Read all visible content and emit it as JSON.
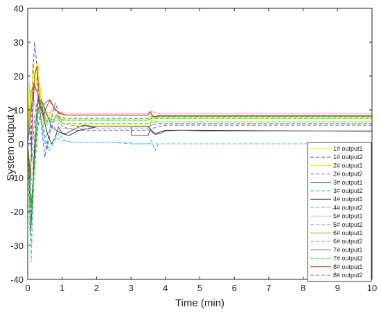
{
  "chart_data": {
    "type": "line",
    "xlabel": "Time (min)",
    "ylabel": "System output y",
    "xlim": [
      0,
      10
    ],
    "ylim": [
      -40,
      40
    ],
    "xticks": [
      0,
      1,
      2,
      3,
      4,
      5,
      6,
      7,
      8,
      9,
      10
    ],
    "yticks": [
      -40,
      -30,
      -20,
      -10,
      0,
      10,
      20,
      30,
      40
    ],
    "grid": false,
    "legend_position": "bottom-right",
    "series": [
      {
        "name": "1# output1",
        "color": "#e8e800",
        "dash": "solid",
        "x": [
          0,
          0.05,
          0.1,
          0.15,
          0.22,
          0.3,
          0.4,
          0.5,
          0.6,
          0.75,
          0.9,
          1.1,
          1.5,
          2,
          3,
          3.5,
          3.6,
          3.8,
          4,
          5,
          10
        ],
        "y": [
          0,
          18,
          8,
          24,
          15,
          24,
          10,
          6,
          8,
          11,
          9,
          7,
          7,
          7,
          7,
          7,
          8.5,
          7.5,
          7.5,
          7.5,
          7.5
        ]
      },
      {
        "name": "1# output2",
        "color": "#3355cc",
        "dash": "dashed",
        "x": [
          0,
          0.05,
          0.1,
          0.15,
          0.2,
          0.25,
          0.3,
          0.4,
          0.5,
          0.6,
          0.7,
          0.8,
          1,
          1.5,
          2,
          3,
          3.5,
          3.6,
          3.8,
          4,
          10
        ],
        "y": [
          0,
          10,
          0,
          20,
          30,
          25,
          15,
          5,
          -4,
          2,
          8,
          12,
          6,
          5,
          5,
          5,
          5,
          5.5,
          6,
          6,
          6
        ]
      },
      {
        "name": "2# output1",
        "color": "#e8e800",
        "dash": "solid",
        "x": [
          0,
          0.08,
          0.15,
          0.25,
          0.35,
          0.45,
          0.55,
          0.7,
          0.85,
          1,
          1.3,
          2,
          3,
          3.5,
          3.6,
          3.8,
          4,
          10
        ],
        "y": [
          0,
          12,
          20,
          22,
          18,
          9,
          6,
          9,
          8,
          6,
          5.5,
          5.5,
          5.5,
          5.5,
          7,
          6.5,
          6.5,
          6.5
        ]
      },
      {
        "name": "2# output2",
        "color": "#6666cc",
        "dash": "dashed",
        "x": [
          0,
          0.05,
          0.12,
          0.2,
          0.3,
          0.4,
          0.55,
          0.7,
          0.85,
          1,
          1.4,
          2,
          3,
          3.5,
          3.6,
          3.8,
          4,
          10
        ],
        "y": [
          0,
          5,
          -5,
          8,
          14,
          6,
          -2,
          5,
          9,
          5,
          4,
          4,
          4,
          4,
          4.5,
          5,
          5.5,
          5.5
        ]
      },
      {
        "name": "3# output1",
        "color": "#333333",
        "dash": "solid",
        "x": [
          0,
          0.04,
          0.08,
          0.12,
          0.18,
          0.25,
          0.32,
          0.4,
          0.5,
          0.6,
          0.7,
          0.8,
          0.9,
          1,
          1.2,
          1.5,
          2,
          3,
          3.5,
          3.7,
          4,
          5,
          10
        ],
        "y": [
          0,
          -10,
          -26,
          -20,
          -5,
          8,
          14,
          12,
          6,
          2,
          0,
          2,
          5,
          3,
          2.5,
          4,
          5,
          5,
          5,
          3,
          4,
          4,
          3.7
        ]
      },
      {
        "name": "3# output2",
        "color": "#33bbee",
        "dash": "dashed",
        "x": [
          0,
          0.05,
          0.1,
          0.18,
          0.28,
          0.4,
          0.5,
          0.62,
          0.75,
          0.9,
          1.05,
          1.3,
          1.8,
          2.4,
          3,
          3.5,
          3.6,
          3.7,
          3.8,
          4,
          10
        ],
        "y": [
          0,
          -15,
          -30,
          -10,
          10,
          12,
          2,
          -2,
          0,
          3,
          1,
          0.5,
          0.5,
          0.5,
          0,
          0,
          1,
          -2,
          0,
          0,
          0
        ]
      },
      {
        "name": "4# output1",
        "color": "#555555",
        "dash": "solid",
        "x": [
          0,
          0.05,
          0.1,
          0.2,
          0.3,
          0.4,
          0.55,
          0.7,
          0.9,
          1.1,
          1.3,
          1.6,
          2,
          2.5,
          3,
          3.02,
          3.5,
          3.55,
          3.7,
          3.85,
          4,
          4.5,
          5,
          10
        ],
        "y": [
          0,
          -8,
          -18,
          -5,
          10,
          13,
          9,
          5,
          3.5,
          3,
          4,
          5.5,
          5,
          5,
          5,
          2.5,
          2.5,
          4,
          2.8,
          3,
          3.8,
          4,
          3.8,
          3.8
        ]
      },
      {
        "name": "4# output2",
        "color": "#55bbee",
        "dash": "dashed",
        "x": [
          0,
          0.05,
          0.1,
          0.2,
          0.3,
          0.4,
          0.5,
          0.6,
          0.8,
          1,
          1.3,
          2,
          3,
          3.02,
          3.5,
          3.6,
          4,
          10
        ],
        "y": [
          0,
          -10,
          -20,
          -5,
          6,
          8,
          0,
          -1,
          2,
          1,
          0.5,
          0.5,
          0.5,
          0,
          0,
          0,
          0,
          0
        ]
      },
      {
        "name": "5# output1",
        "color": "#ff99aa",
        "dash": "solid",
        "x": [
          0,
          0.05,
          0.12,
          0.2,
          0.3,
          0.45,
          0.6,
          0.75,
          0.9,
          1.1,
          1.5,
          2,
          3,
          3.5,
          3.6,
          3.8,
          4,
          10
        ],
        "y": [
          0,
          6,
          12,
          17,
          15,
          10,
          9,
          10,
          9.5,
          9,
          9,
          9,
          9,
          9,
          9.5,
          9,
          9,
          9
        ]
      },
      {
        "name": "5# output2",
        "color": "#aaaaaa",
        "dash": "dashed",
        "x": [
          0,
          0.05,
          0.1,
          0.2,
          0.3,
          0.4,
          0.5,
          0.65,
          0.8,
          1,
          1.5,
          2,
          3,
          3.5,
          3.6,
          3.8,
          4,
          10
        ],
        "y": [
          0,
          -5,
          -12,
          2,
          10,
          6,
          2,
          4,
          5,
          4.5,
          4.5,
          4.5,
          4.5,
          4.5,
          6.5,
          6,
          6,
          6
        ]
      },
      {
        "name": "6# output1",
        "color": "#99cc33",
        "dash": "solid",
        "x": [
          0,
          0.05,
          0.1,
          0.2,
          0.3,
          0.45,
          0.6,
          0.75,
          0.9,
          1.1,
          1.5,
          2,
          3,
          3.5,
          3.6,
          3.8,
          4,
          10
        ],
        "y": [
          0,
          10,
          16,
          12,
          8,
          6,
          7,
          8,
          7.5,
          7,
          7,
          7,
          7,
          7,
          7.5,
          8,
          8,
          8
        ]
      },
      {
        "name": "6# output2",
        "color": "#66cc66",
        "dash": "dashed",
        "x": [
          0,
          0.04,
          0.1,
          0.18,
          0.28,
          0.4,
          0.55,
          0.7,
          0.9,
          1.1,
          1.5,
          2,
          3,
          3.5,
          3.6,
          3.8,
          4,
          10
        ],
        "y": [
          0,
          -20,
          -35,
          -10,
          8,
          12,
          6,
          4,
          6,
          6,
          6,
          6,
          6,
          6,
          6.5,
          6.5,
          6.5,
          6.5
        ]
      },
      {
        "name": "7# output1",
        "color": "#aa5555",
        "dash": "solid",
        "x": [
          0,
          0.05,
          0.1,
          0.18,
          0.28,
          0.38,
          0.5,
          0.62,
          0.75,
          0.9,
          1.1,
          1.5,
          2,
          3,
          3.5,
          3.55,
          3.65,
          3.8,
          4,
          10
        ],
        "y": [
          0,
          4,
          10,
          18,
          15,
          10,
          12,
          13,
          11,
          9,
          8.5,
          8.5,
          8.5,
          8.5,
          8.5,
          9.5,
          8,
          8.2,
          8.2,
          8.2
        ]
      },
      {
        "name": "7# output2",
        "color": "#33cc33",
        "dash": "dashed",
        "x": [
          0,
          0.05,
          0.1,
          0.2,
          0.3,
          0.4,
          0.5,
          0.6,
          0.8,
          1,
          1.5,
          2,
          3,
          3.5,
          3.6,
          4,
          10
        ],
        "y": [
          0,
          -10,
          -25,
          -8,
          5,
          10,
          8,
          6,
          7,
          7,
          7,
          7,
          7,
          7,
          7.5,
          7.5,
          7.5
        ]
      },
      {
        "name": "8# output1",
        "color": "#bb3322",
        "dash": "solid",
        "x": [
          0,
          0.04,
          0.08,
          0.13,
          0.2,
          0.27,
          0.35,
          0.45,
          0.55,
          0.65,
          0.8,
          0.95,
          1.1,
          1.5,
          2,
          3,
          3.5,
          3.55,
          3.65,
          3.8,
          4,
          10
        ],
        "y": [
          0,
          -5,
          -10,
          5,
          20,
          23,
          12,
          8,
          11,
          13,
          10,
          9,
          8.5,
          8.5,
          8.5,
          8.5,
          8.5,
          9.5,
          8,
          8.3,
          8.3,
          8.3
        ]
      },
      {
        "name": "8# output2",
        "color": "#22bb22",
        "dash": "dashed",
        "x": [
          0,
          0.05,
          0.1,
          0.2,
          0.3,
          0.4,
          0.55,
          0.7,
          0.9,
          1.1,
          1.5,
          2,
          3,
          3.5,
          3.6,
          4,
          10
        ],
        "y": [
          0,
          -8,
          -20,
          -5,
          10,
          13,
          8,
          7,
          8,
          7.5,
          7.5,
          7.5,
          7.5,
          7.5,
          8,
          8,
          8
        ]
      }
    ]
  }
}
